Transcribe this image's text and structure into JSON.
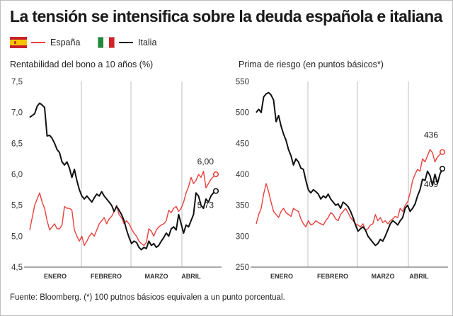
{
  "title": "La tensión se intensifica sobre la deuda española e italiana",
  "legend": [
    {
      "name": "España",
      "color": "#e8403c",
      "flag": "spain-flag-icon"
    },
    {
      "name": "Italia",
      "color": "#111111",
      "flag": "italy-flag-icon"
    }
  ],
  "colors": {
    "espana": "#e8403c",
    "italia": "#111111",
    "grid": "#bfbfbf",
    "axis": "#555555"
  },
  "footnote": "Fuente: Bloomberg. (*) 100 putnos básicos equivalen a un punto porcentual.",
  "chart_data": [
    {
      "type": "line",
      "title": "Rentabilidad del bono a 10 años (%)",
      "ylim": [
        4.5,
        7.5
      ],
      "yticks": [
        "7,5",
        "7,0",
        "6,5",
        "6,0",
        "5,5",
        "5,0",
        "4,5"
      ],
      "ytick_values": [
        7.5,
        7.0,
        6.5,
        6.0,
        5.5,
        5.0,
        4.5
      ],
      "months": [
        "ENERO",
        "FEBRERO",
        "MARZO",
        "ABRIL"
      ],
      "grid": "vertical month separators",
      "series": [
        {
          "name": "España",
          "color": "#e8403c",
          "values": [
            5.1,
            5.3,
            5.5,
            5.6,
            5.7,
            5.55,
            5.45,
            5.25,
            5.1,
            5.15,
            5.2,
            5.12,
            5.12,
            5.18,
            5.48,
            5.45,
            5.45,
            5.42,
            5.1,
            5.0,
            4.92,
            5.0,
            4.85,
            4.92,
            5.0,
            5.05,
            5.0,
            5.1,
            5.2,
            5.25,
            5.3,
            5.2,
            5.28,
            5.32,
            5.4,
            5.5,
            5.35,
            5.3,
            5.2,
            5.25,
            5.2,
            5.12,
            5.05,
            5.0,
            4.92,
            4.88,
            4.85,
            4.9,
            5.12,
            5.08,
            5.0,
            5.1,
            5.15,
            5.18,
            5.2,
            5.25,
            5.42,
            5.38,
            5.45,
            5.48,
            5.4,
            5.45,
            5.55,
            5.7,
            5.8,
            5.95,
            5.85,
            5.9,
            6.0,
            5.95,
            6.05,
            5.78,
            5.85,
            5.92,
            5.96,
            6.0
          ]
        },
        {
          "name": "Italia",
          "color": "#111111",
          "values": [
            6.92,
            6.95,
            6.98,
            7.1,
            7.15,
            7.12,
            7.08,
            6.62,
            6.63,
            6.58,
            6.5,
            6.4,
            6.35,
            6.2,
            6.15,
            6.2,
            6.1,
            5.95,
            6.08,
            5.9,
            5.75,
            5.65,
            5.6,
            5.65,
            5.6,
            5.55,
            5.62,
            5.68,
            5.65,
            5.72,
            5.65,
            5.6,
            5.55,
            5.5,
            5.4,
            5.48,
            5.42,
            5.35,
            5.25,
            5.1,
            4.98,
            4.88,
            4.92,
            4.9,
            4.82,
            4.78,
            4.82,
            4.8,
            4.92,
            4.85,
            4.88,
            4.82,
            4.85,
            4.92,
            4.98,
            5.05,
            5.0,
            5.12,
            5.15,
            5.1,
            5.35,
            5.2,
            5.05,
            5.18,
            5.15,
            5.25,
            5.35,
            5.7,
            5.65,
            5.5,
            5.45,
            5.6,
            5.55,
            5.65,
            5.7,
            5.73
          ]
        }
      ],
      "annotations": [
        {
          "text": "6,00",
          "series": "España"
        },
        {
          "text": "5,73",
          "series": "Italia"
        }
      ]
    },
    {
      "type": "line",
      "title": "Prima de riesgo (en puntos básicos*)",
      "ylim": [
        250,
        550
      ],
      "yticks": [
        "550",
        "500",
        "450",
        "400",
        "350",
        "300",
        "250"
      ],
      "ytick_values": [
        550,
        500,
        450,
        400,
        350,
        300,
        250
      ],
      "months": [
        "ENERO",
        "FEBRERO",
        "MARZO",
        "ABRIL"
      ],
      "grid": "vertical month separators",
      "series": [
        {
          "name": "España",
          "color": "#e8403c",
          "values": [
            320,
            335,
            345,
            368,
            385,
            372,
            355,
            340,
            335,
            330,
            340,
            345,
            338,
            335,
            332,
            345,
            342,
            340,
            328,
            320,
            315,
            325,
            318,
            320,
            325,
            322,
            320,
            318,
            325,
            330,
            338,
            335,
            328,
            325,
            335,
            340,
            345,
            338,
            330,
            325,
            320,
            318,
            315,
            320,
            310,
            312,
            318,
            320,
            335,
            325,
            330,
            322,
            325,
            320,
            325,
            328,
            332,
            330,
            345,
            340,
            350,
            355,
            370,
            390,
            400,
            408,
            405,
            425,
            420,
            430,
            440,
            435,
            420,
            428,
            432,
            436
          ]
        },
        {
          "name": "Italia",
          "color": "#111111",
          "values": [
            500,
            505,
            500,
            525,
            530,
            532,
            528,
            520,
            485,
            495,
            478,
            465,
            455,
            440,
            430,
            415,
            425,
            420,
            410,
            408,
            390,
            375,
            370,
            375,
            372,
            368,
            360,
            365,
            362,
            368,
            360,
            355,
            350,
            352,
            345,
            355,
            352,
            348,
            340,
            330,
            318,
            308,
            312,
            315,
            310,
            300,
            295,
            290,
            285,
            288,
            295,
            292,
            300,
            310,
            320,
            325,
            322,
            318,
            325,
            330,
            345,
            350,
            340,
            345,
            352,
            365,
            375,
            392,
            390,
            405,
            398,
            382,
            400,
            385,
            400,
            409
          ]
        }
      ],
      "annotations": [
        {
          "text": "436",
          "series": "España"
        },
        {
          "text": "409",
          "series": "Italia"
        }
      ]
    }
  ]
}
